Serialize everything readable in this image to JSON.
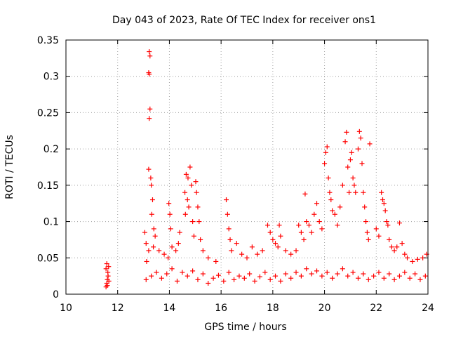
{
  "chart_data": {
    "type": "scatter",
    "title": "Day 043 of 2023, Rate Of TEC Index for receiver ons1",
    "xlabel": "GPS time / hours",
    "ylabel": "ROTI / TECUs",
    "xlim": [
      10,
      24
    ],
    "ylim": [
      0,
      0.35
    ],
    "x_ticks": [
      "10",
      "12",
      "14",
      "16",
      "18",
      "20",
      "22",
      "24"
    ],
    "y_ticks": [
      "0",
      "0.05",
      "0.1",
      "0.15",
      "0.2",
      "0.25",
      "0.3",
      "0.35"
    ],
    "grid": true,
    "marker": "+",
    "color": "#ff0000",
    "series": [
      {
        "points": [
          [
            11.55,
            0.01
          ],
          [
            11.58,
            0.015
          ],
          [
            11.6,
            0.02
          ],
          [
            11.62,
            0.03
          ],
          [
            11.65,
            0.038
          ],
          [
            11.58,
            0.042
          ],
          [
            11.63,
            0.025
          ],
          [
            11.55,
            0.035
          ],
          [
            11.6,
            0.012
          ],
          [
            11.66,
            0.018
          ],
          [
            13.05,
            0.085
          ],
          [
            13.1,
            0.07
          ],
          [
            13.12,
            0.045
          ],
          [
            13.2,
            0.06
          ],
          [
            13.22,
            0.334
          ],
          [
            13.25,
            0.328
          ],
          [
            13.2,
            0.305
          ],
          [
            13.22,
            0.303
          ],
          [
            13.25,
            0.255
          ],
          [
            13.22,
            0.242
          ],
          [
            13.2,
            0.172
          ],
          [
            13.28,
            0.16
          ],
          [
            13.3,
            0.15
          ],
          [
            13.35,
            0.13
          ],
          [
            13.32,
            0.11
          ],
          [
            13.4,
            0.09
          ],
          [
            13.45,
            0.08
          ],
          [
            13.38,
            0.065
          ],
          [
            13.6,
            0.06
          ],
          [
            13.8,
            0.055
          ],
          [
            13.95,
            0.05
          ],
          [
            13.98,
            0.125
          ],
          [
            14.02,
            0.11
          ],
          [
            14.05,
            0.09
          ],
          [
            14.1,
            0.065
          ],
          [
            14.25,
            0.06
          ],
          [
            14.35,
            0.07
          ],
          [
            14.4,
            0.085
          ],
          [
            14.6,
            0.14
          ],
          [
            14.65,
            0.165
          ],
          [
            14.72,
            0.16
          ],
          [
            14.8,
            0.175
          ],
          [
            14.85,
            0.15
          ],
          [
            14.7,
            0.13
          ],
          [
            14.75,
            0.12
          ],
          [
            14.62,
            0.11
          ],
          [
            14.9,
            0.1
          ],
          [
            14.95,
            0.08
          ],
          [
            15.02,
            0.155
          ],
          [
            15.05,
            0.14
          ],
          [
            15.1,
            0.12
          ],
          [
            15.15,
            0.1
          ],
          [
            15.2,
            0.075
          ],
          [
            15.3,
            0.06
          ],
          [
            15.5,
            0.05
          ],
          [
            15.8,
            0.045
          ],
          [
            16.2,
            0.13
          ],
          [
            16.25,
            0.11
          ],
          [
            16.3,
            0.09
          ],
          [
            16.35,
            0.075
          ],
          [
            16.4,
            0.06
          ],
          [
            16.6,
            0.07
          ],
          [
            16.8,
            0.055
          ],
          [
            17.0,
            0.05
          ],
          [
            17.2,
            0.065
          ],
          [
            17.4,
            0.055
          ],
          [
            17.6,
            0.06
          ],
          [
            17.8,
            0.095
          ],
          [
            17.9,
            0.085
          ],
          [
            18.0,
            0.075
          ],
          [
            18.1,
            0.07
          ],
          [
            18.2,
            0.065
          ],
          [
            18.25,
            0.095
          ],
          [
            18.3,
            0.08
          ],
          [
            18.5,
            0.06
          ],
          [
            18.7,
            0.055
          ],
          [
            18.9,
            0.06
          ],
          [
            19.0,
            0.095
          ],
          [
            19.1,
            0.085
          ],
          [
            19.2,
            0.075
          ],
          [
            19.25,
            0.138
          ],
          [
            19.3,
            0.1
          ],
          [
            19.4,
            0.095
          ],
          [
            19.5,
            0.085
          ],
          [
            19.6,
            0.11
          ],
          [
            19.7,
            0.125
          ],
          [
            19.8,
            0.1
          ],
          [
            19.9,
            0.09
          ],
          [
            20.0,
            0.18
          ],
          [
            20.05,
            0.195
          ],
          [
            20.1,
            0.203
          ],
          [
            20.15,
            0.16
          ],
          [
            20.2,
            0.14
          ],
          [
            20.25,
            0.13
          ],
          [
            20.3,
            0.115
          ],
          [
            20.4,
            0.11
          ],
          [
            20.5,
            0.095
          ],
          [
            20.6,
            0.12
          ],
          [
            20.7,
            0.15
          ],
          [
            20.8,
            0.21
          ],
          [
            20.85,
            0.223
          ],
          [
            20.9,
            0.175
          ],
          [
            20.95,
            0.14
          ],
          [
            21.0,
            0.185
          ],
          [
            21.05,
            0.195
          ],
          [
            21.1,
            0.16
          ],
          [
            21.15,
            0.15
          ],
          [
            21.2,
            0.14
          ],
          [
            21.3,
            0.2
          ],
          [
            21.35,
            0.224
          ],
          [
            21.4,
            0.215
          ],
          [
            21.45,
            0.18
          ],
          [
            21.5,
            0.14
          ],
          [
            21.55,
            0.12
          ],
          [
            21.6,
            0.1
          ],
          [
            21.65,
            0.085
          ],
          [
            21.7,
            0.075
          ],
          [
            21.75,
            0.207
          ],
          [
            22.0,
            0.09
          ],
          [
            22.1,
            0.08
          ],
          [
            22.2,
            0.14
          ],
          [
            22.25,
            0.13
          ],
          [
            22.3,
            0.125
          ],
          [
            22.35,
            0.115
          ],
          [
            22.4,
            0.1
          ],
          [
            22.45,
            0.095
          ],
          [
            22.5,
            0.075
          ],
          [
            22.6,
            0.065
          ],
          [
            22.7,
            0.06
          ],
          [
            22.8,
            0.065
          ],
          [
            22.9,
            0.098
          ],
          [
            23.0,
            0.07
          ],
          [
            23.1,
            0.055
          ],
          [
            23.2,
            0.05
          ],
          [
            23.4,
            0.045
          ],
          [
            23.6,
            0.048
          ],
          [
            23.8,
            0.05
          ],
          [
            23.95,
            0.055
          ],
          [
            13.1,
            0.02
          ],
          [
            13.3,
            0.025
          ],
          [
            13.5,
            0.03
          ],
          [
            13.7,
            0.022
          ],
          [
            13.9,
            0.028
          ],
          [
            14.1,
            0.035
          ],
          [
            14.3,
            0.018
          ],
          [
            14.5,
            0.03
          ],
          [
            14.7,
            0.025
          ],
          [
            14.9,
            0.032
          ],
          [
            15.1,
            0.02
          ],
          [
            15.3,
            0.028
          ],
          [
            15.5,
            0.015
          ],
          [
            15.7,
            0.022
          ],
          [
            15.9,
            0.026
          ],
          [
            16.1,
            0.018
          ],
          [
            16.3,
            0.03
          ],
          [
            16.5,
            0.02
          ],
          [
            16.7,
            0.025
          ],
          [
            16.9,
            0.022
          ],
          [
            17.1,
            0.028
          ],
          [
            17.3,
            0.018
          ],
          [
            17.5,
            0.024
          ],
          [
            17.7,
            0.03
          ],
          [
            17.9,
            0.02
          ],
          [
            18.1,
            0.025
          ],
          [
            18.3,
            0.018
          ],
          [
            18.5,
            0.028
          ],
          [
            18.7,
            0.022
          ],
          [
            18.9,
            0.03
          ],
          [
            19.1,
            0.025
          ],
          [
            19.3,
            0.035
          ],
          [
            19.5,
            0.028
          ],
          [
            19.7,
            0.032
          ],
          [
            19.9,
            0.025
          ],
          [
            20.1,
            0.03
          ],
          [
            20.3,
            0.022
          ],
          [
            20.5,
            0.028
          ],
          [
            20.7,
            0.035
          ],
          [
            20.9,
            0.025
          ],
          [
            21.1,
            0.03
          ],
          [
            21.3,
            0.022
          ],
          [
            21.5,
            0.028
          ],
          [
            21.7,
            0.02
          ],
          [
            21.9,
            0.025
          ],
          [
            22.1,
            0.03
          ],
          [
            22.3,
            0.022
          ],
          [
            22.5,
            0.028
          ],
          [
            22.7,
            0.02
          ],
          [
            22.9,
            0.025
          ],
          [
            23.1,
            0.03
          ],
          [
            23.3,
            0.022
          ],
          [
            23.5,
            0.028
          ],
          [
            23.7,
            0.02
          ],
          [
            23.9,
            0.025
          ]
        ]
      }
    ]
  }
}
